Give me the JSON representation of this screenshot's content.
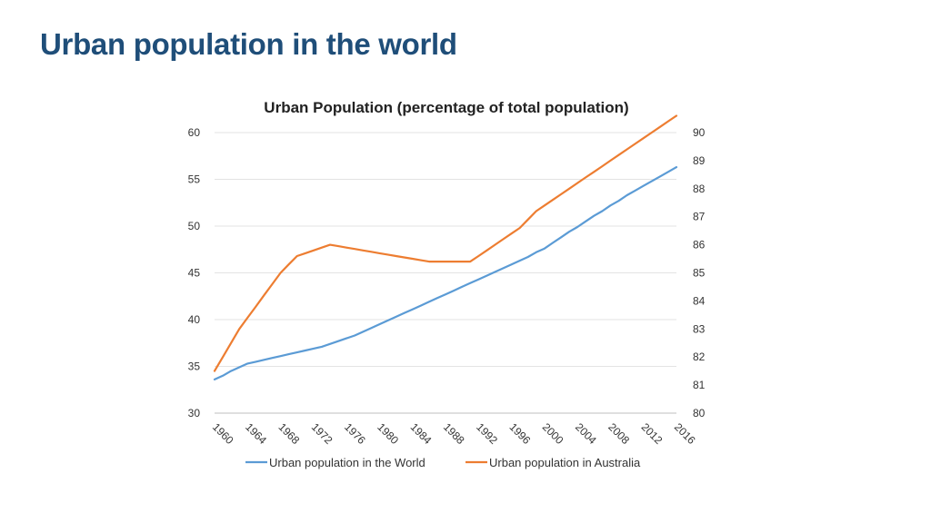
{
  "slide": {
    "title": "Urban population in the world"
  },
  "chart_data": {
    "type": "line",
    "title": "Urban Population (percentage of total population)",
    "x": [
      1960,
      1961,
      1962,
      1963,
      1964,
      1965,
      1966,
      1967,
      1968,
      1969,
      1970,
      1971,
      1972,
      1973,
      1974,
      1975,
      1976,
      1977,
      1978,
      1979,
      1980,
      1981,
      1982,
      1983,
      1984,
      1985,
      1986,
      1987,
      1988,
      1989,
      1990,
      1991,
      1992,
      1993,
      1994,
      1995,
      1996,
      1997,
      1998,
      1999,
      2000,
      2001,
      2002,
      2003,
      2004,
      2005,
      2006,
      2007,
      2008,
      2009,
      2010,
      2011,
      2012,
      2013,
      2014,
      2015,
      2016
    ],
    "x_tick_labels": [
      "1960",
      "1964",
      "1968",
      "1972",
      "1976",
      "1980",
      "1984",
      "1988",
      "1992",
      "1996",
      "2000",
      "2004",
      "2008",
      "2012",
      "2016"
    ],
    "y_left": {
      "min": 30,
      "max": 60,
      "ticks": [
        "30",
        "35",
        "40",
        "45",
        "50",
        "55",
        "60"
      ]
    },
    "y_right": {
      "min": 80,
      "max": 90,
      "ticks": [
        "80",
        "81",
        "82",
        "83",
        "84",
        "85",
        "86",
        "87",
        "88",
        "89",
        "90"
      ]
    },
    "grid": true,
    "legend_position": "bottom",
    "series": [
      {
        "name": "Urban population in the World",
        "axis": "left",
        "color": "#5b9bd5",
        "values": [
          33.6,
          34.0,
          34.5,
          34.9,
          35.3,
          35.5,
          35.7,
          35.9,
          36.1,
          36.3,
          36.5,
          36.7,
          36.9,
          37.1,
          37.4,
          37.7,
          38.0,
          38.3,
          38.7,
          39.1,
          39.5,
          39.9,
          40.3,
          40.7,
          41.1,
          41.5,
          41.9,
          42.3,
          42.7,
          43.1,
          43.5,
          43.9,
          44.3,
          44.7,
          45.1,
          45.5,
          45.9,
          46.3,
          46.7,
          47.2,
          47.6,
          48.2,
          48.8,
          49.4,
          49.9,
          50.5,
          51.1,
          51.6,
          52.2,
          52.7,
          53.3,
          53.8,
          54.3,
          54.8,
          55.3,
          55.8,
          56.3
        ]
      },
      {
        "name": "Urban population in Australia",
        "axis": "right",
        "color": "#ed7d31",
        "values": [
          81.5,
          82.0,
          82.5,
          83.0,
          83.4,
          83.8,
          84.2,
          84.6,
          85.0,
          85.3,
          85.6,
          85.7,
          85.8,
          85.9,
          86.0,
          85.95,
          85.9,
          85.85,
          85.8,
          85.75,
          85.7,
          85.65,
          85.6,
          85.55,
          85.5,
          85.45,
          85.4,
          85.4,
          85.4,
          85.4,
          85.4,
          85.4,
          85.6,
          85.8,
          86.0,
          86.2,
          86.4,
          86.6,
          86.9,
          87.2,
          87.4,
          87.6,
          87.8,
          88.0,
          88.2,
          88.4,
          88.6,
          88.8,
          89.0,
          89.2,
          89.4,
          89.6,
          89.8,
          90.0,
          90.2,
          90.4,
          90.6
        ]
      }
    ]
  }
}
